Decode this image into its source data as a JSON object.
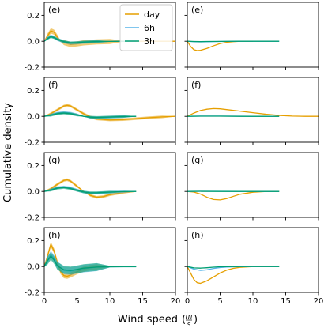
{
  "figure": {
    "ylabel": "Cumulative density",
    "xlabel": "Wind speed",
    "xlabel_unit_num": "m",
    "xlabel_unit_den": "s"
  },
  "legend": {
    "placement": "top-center of first left panel",
    "entries": [
      {
        "label": "day",
        "color": "#E69F00"
      },
      {
        "label": "6h",
        "color": "#56B4E9"
      },
      {
        "label": "3h",
        "color": "#009E73"
      }
    ]
  },
  "chart_data": [
    {
      "type": "line",
      "panel_label": "(e)",
      "row": 0,
      "col": 0,
      "xlim": [
        0,
        20
      ],
      "ylim": [
        -0.2,
        0.3
      ],
      "xticks": [
        0,
        5,
        10,
        15,
        20
      ],
      "yticks": [
        -0.2,
        0.0,
        0.2
      ],
      "series": [
        {
          "name": "day",
          "color": "#E69F00",
          "band": 0.02,
          "x": [
            0,
            0.5,
            1,
            1.5,
            2,
            2.5,
            3,
            4,
            5,
            6,
            8,
            10,
            12,
            14,
            17,
            20
          ],
          "y": [
            0,
            0.04,
            0.08,
            0.07,
            0.03,
            0.0,
            -0.01,
            -0.025,
            -0.02,
            -0.012,
            -0.005,
            -0.002,
            0,
            0,
            0,
            0
          ]
        },
        {
          "name": "6h",
          "color": "#56B4E9",
          "band": 0.012,
          "x": [
            0,
            0.5,
            1,
            1.5,
            2,
            3,
            4,
            5,
            6,
            8,
            10,
            12,
            14
          ],
          "y": [
            0,
            0.025,
            0.04,
            0.03,
            0.015,
            -0.005,
            -0.015,
            -0.012,
            -0.008,
            -0.003,
            -0.001,
            0,
            0
          ]
        },
        {
          "name": "3h",
          "color": "#009E73",
          "band": 0.01,
          "x": [
            0,
            0.5,
            1,
            1.5,
            2,
            3,
            4,
            5,
            6,
            8,
            10,
            12,
            14
          ],
          "y": [
            0,
            0.02,
            0.035,
            0.028,
            0.015,
            -0.003,
            -0.012,
            -0.01,
            -0.006,
            -0.002,
            -0.001,
            0,
            0
          ]
        }
      ]
    },
    {
      "type": "line",
      "panel_label": "(e)",
      "row": 0,
      "col": 1,
      "xlim": [
        0,
        20
      ],
      "ylim": [
        -0.2,
        0.3
      ],
      "xticks": [
        0,
        5,
        10,
        15,
        20
      ],
      "yticks": [
        -0.2,
        0.0,
        0.2
      ],
      "series": [
        {
          "name": "day",
          "color": "#E69F00",
          "band": 0,
          "x": [
            0,
            0.5,
            1,
            1.5,
            2,
            3,
            4,
            5,
            6,
            7,
            8,
            10
          ],
          "y": [
            0,
            -0.04,
            -0.065,
            -0.072,
            -0.07,
            -0.055,
            -0.035,
            -0.018,
            -0.008,
            -0.003,
            0,
            0
          ]
        },
        {
          "name": "6h",
          "color": "#56B4E9",
          "band": 0,
          "x": [
            0,
            1,
            2,
            3,
            5,
            8,
            10,
            14
          ],
          "y": [
            0,
            -0.004,
            -0.005,
            -0.004,
            -0.002,
            0,
            0,
            0
          ]
        },
        {
          "name": "3h",
          "color": "#009E73",
          "band": 0,
          "x": [
            0,
            1,
            2,
            3,
            5,
            8,
            10,
            14
          ],
          "y": [
            0,
            -0.002,
            -0.003,
            -0.002,
            -0.001,
            0,
            0,
            0
          ]
        }
      ]
    },
    {
      "type": "line",
      "panel_label": "(f)",
      "row": 1,
      "col": 0,
      "xlim": [
        0,
        20
      ],
      "ylim": [
        -0.2,
        0.3
      ],
      "xticks": [
        0,
        5,
        10,
        15,
        20
      ],
      "yticks": [
        -0.2,
        0.0,
        0.2
      ],
      "series": [
        {
          "name": "day",
          "color": "#E69F00",
          "band": 0.01,
          "x": [
            0,
            1,
            2,
            3,
            3.5,
            4,
            5,
            6,
            7,
            8,
            10,
            12,
            14,
            16,
            18,
            20
          ],
          "y": [
            0,
            0.02,
            0.05,
            0.08,
            0.085,
            0.08,
            0.05,
            0.02,
            -0.005,
            -0.02,
            -0.028,
            -0.025,
            -0.018,
            -0.01,
            -0.004,
            0
          ]
        },
        {
          "name": "6h",
          "color": "#56B4E9",
          "band": 0.01,
          "x": [
            0,
            1,
            2,
            3,
            4,
            5,
            6,
            7,
            8,
            10,
            12,
            14
          ],
          "y": [
            0,
            0.01,
            0.025,
            0.03,
            0.025,
            0.012,
            0,
            -0.008,
            -0.01,
            -0.006,
            -0.002,
            0
          ]
        },
        {
          "name": "3h",
          "color": "#009E73",
          "band": 0.01,
          "x": [
            0,
            1,
            2,
            3,
            4,
            5,
            6,
            7,
            8,
            10,
            12,
            14
          ],
          "y": [
            0,
            0.008,
            0.02,
            0.025,
            0.02,
            0.01,
            0,
            -0.006,
            -0.008,
            -0.005,
            -0.002,
            0
          ]
        }
      ]
    },
    {
      "type": "line",
      "panel_label": "(f)",
      "row": 1,
      "col": 1,
      "xlim": [
        0,
        20
      ],
      "ylim": [
        -0.2,
        0.3
      ],
      "xticks": [
        0,
        5,
        10,
        15,
        20
      ],
      "yticks": [
        -0.2,
        0.0,
        0.2
      ],
      "series": [
        {
          "name": "day",
          "color": "#E69F00",
          "band": 0,
          "x": [
            0,
            1,
            2,
            3,
            4,
            5,
            6,
            8,
            10,
            12,
            14,
            16,
            18,
            20
          ],
          "y": [
            0,
            0.025,
            0.045,
            0.055,
            0.06,
            0.058,
            0.052,
            0.04,
            0.028,
            0.016,
            0.007,
            0.002,
            0,
            0
          ]
        },
        {
          "name": "6h",
          "color": "#56B4E9",
          "band": 0,
          "x": [
            0,
            2,
            5,
            8,
            10,
            14
          ],
          "y": [
            0,
            0.002,
            0.002,
            0.001,
            0,
            0
          ]
        },
        {
          "name": "3h",
          "color": "#009E73",
          "band": 0,
          "x": [
            0,
            2,
            5,
            8,
            10,
            14
          ],
          "y": [
            0,
            0.001,
            0.001,
            0,
            0,
            0
          ]
        }
      ]
    },
    {
      "type": "line",
      "panel_label": "(g)",
      "row": 2,
      "col": 0,
      "xlim": [
        0,
        20
      ],
      "ylim": [
        -0.2,
        0.3
      ],
      "xticks": [
        0,
        5,
        10,
        15,
        20
      ],
      "yticks": [
        -0.2,
        0.0,
        0.2
      ],
      "series": [
        {
          "name": "day",
          "color": "#E69F00",
          "band": 0.01,
          "x": [
            0,
            1,
            2,
            3,
            3.5,
            4,
            5,
            6,
            7,
            8,
            9,
            10,
            12,
            14
          ],
          "y": [
            0,
            0.02,
            0.055,
            0.085,
            0.09,
            0.08,
            0.04,
            0.0,
            -0.03,
            -0.045,
            -0.04,
            -0.025,
            -0.008,
            0
          ]
        },
        {
          "name": "6h",
          "color": "#56B4E9",
          "band": 0.01,
          "x": [
            0,
            1,
            2,
            3,
            4,
            5,
            6,
            7,
            8,
            10,
            12,
            14
          ],
          "y": [
            0,
            0.012,
            0.03,
            0.035,
            0.028,
            0.01,
            -0.005,
            -0.012,
            -0.012,
            -0.006,
            -0.002,
            0
          ]
        },
        {
          "name": "3h",
          "color": "#009E73",
          "band": 0.01,
          "x": [
            0,
            1,
            2,
            3,
            4,
            5,
            6,
            7,
            8,
            10,
            12,
            14
          ],
          "y": [
            0,
            0.01,
            0.025,
            0.03,
            0.022,
            0.008,
            -0.004,
            -0.01,
            -0.01,
            -0.005,
            -0.001,
            0
          ]
        }
      ]
    },
    {
      "type": "line",
      "panel_label": "(g)",
      "row": 2,
      "col": 1,
      "xlim": [
        0,
        20
      ],
      "ylim": [
        -0.2,
        0.3
      ],
      "xticks": [
        0,
        5,
        10,
        15,
        20
      ],
      "yticks": [
        -0.2,
        0.0,
        0.2
      ],
      "series": [
        {
          "name": "day",
          "color": "#E69F00",
          "band": 0,
          "x": [
            0,
            1,
            2,
            3,
            4,
            5,
            6,
            7,
            8,
            10,
            12,
            14
          ],
          "y": [
            0,
            -0.005,
            -0.02,
            -0.045,
            -0.062,
            -0.065,
            -0.055,
            -0.038,
            -0.022,
            -0.006,
            0,
            0
          ]
        },
        {
          "name": "6h",
          "color": "#56B4E9",
          "band": 0,
          "x": [
            0,
            2,
            5,
            8,
            10,
            14
          ],
          "y": [
            0,
            0.001,
            0.001,
            0,
            0,
            0
          ]
        },
        {
          "name": "3h",
          "color": "#009E73",
          "band": 0,
          "x": [
            0,
            2,
            5,
            8,
            10,
            14
          ],
          "y": [
            0,
            0.001,
            0,
            0,
            0,
            0
          ]
        }
      ]
    },
    {
      "type": "line",
      "panel_label": "(h)",
      "row": 3,
      "col": 0,
      "xlim": [
        0,
        20
      ],
      "ylim": [
        -0.2,
        0.3
      ],
      "xticks": [
        0,
        5,
        10,
        15,
        20
      ],
      "yticks": [
        -0.2,
        0.0,
        0.2
      ],
      "series": [
        {
          "name": "day",
          "color": "#E69F00",
          "band": 0.02,
          "x": [
            0,
            0.5,
            1,
            1.5,
            2,
            2.5,
            3,
            3.5,
            4,
            5,
            6,
            7,
            8,
            10,
            12,
            14
          ],
          "y": [
            0,
            0.08,
            0.17,
            0.12,
            0.03,
            -0.04,
            -0.07,
            -0.075,
            -0.065,
            -0.04,
            -0.02,
            -0.008,
            -0.003,
            0,
            0,
            0
          ]
        },
        {
          "name": "6h",
          "color": "#56B4E9",
          "band": 0.03,
          "x": [
            0,
            0.5,
            1,
            1.5,
            2,
            3,
            4,
            5,
            6,
            8,
            10,
            12,
            14
          ],
          "y": [
            0,
            0.05,
            0.09,
            0.06,
            0.01,
            -0.03,
            -0.035,
            -0.025,
            -0.015,
            -0.005,
            -0.001,
            0,
            0
          ]
        },
        {
          "name": "3h",
          "color": "#009E73",
          "band": 0.03,
          "x": [
            0,
            0.5,
            1,
            1.5,
            2,
            3,
            4,
            5,
            6,
            8,
            10,
            12,
            14
          ],
          "y": [
            0,
            0.045,
            0.08,
            0.05,
            0.005,
            -0.025,
            -0.03,
            -0.022,
            -0.012,
            -0.004,
            -0.001,
            0,
            0
          ]
        }
      ]
    },
    {
      "type": "line",
      "panel_label": "(h)",
      "row": 3,
      "col": 1,
      "xlim": [
        0,
        20
      ],
      "ylim": [
        -0.2,
        0.3
      ],
      "xticks": [
        0,
        5,
        10,
        15,
        20
      ],
      "yticks": [
        -0.2,
        0.0,
        0.2
      ],
      "series": [
        {
          "name": "day",
          "color": "#E69F00",
          "band": 0,
          "x": [
            0,
            0.5,
            1,
            1.5,
            2,
            3,
            4,
            5,
            6,
            7,
            8,
            10,
            12,
            14
          ],
          "y": [
            0,
            -0.05,
            -0.1,
            -0.125,
            -0.13,
            -0.11,
            -0.08,
            -0.05,
            -0.028,
            -0.014,
            -0.006,
            0,
            0,
            0
          ]
        },
        {
          "name": "6h",
          "color": "#56B4E9",
          "band": 0,
          "x": [
            0,
            1,
            2,
            3,
            4,
            5,
            6,
            8,
            10,
            14
          ],
          "y": [
            0,
            -0.02,
            -0.03,
            -0.025,
            -0.015,
            -0.008,
            -0.004,
            -0.001,
            0,
            0
          ]
        },
        {
          "name": "3h",
          "color": "#009E73",
          "band": 0,
          "x": [
            0,
            1,
            2,
            3,
            4,
            5,
            6,
            8,
            10,
            14
          ],
          "y": [
            0,
            -0.01,
            -0.012,
            -0.009,
            -0.005,
            -0.002,
            -0.001,
            0,
            0,
            0
          ]
        }
      ]
    }
  ]
}
